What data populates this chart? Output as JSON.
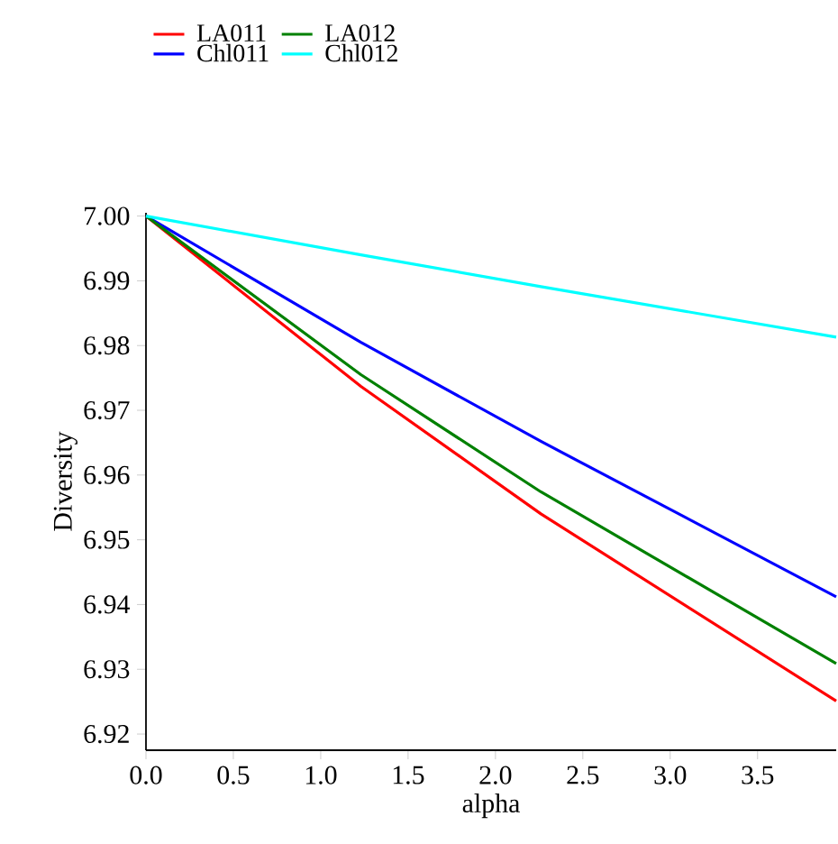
{
  "chart_data": {
    "type": "line",
    "xlabel": "alpha",
    "ylabel": "Diversity",
    "xlim": [
      0,
      3.95
    ],
    "ylim": [
      6.9175,
      7.0005
    ],
    "xticks": [
      {
        "value": 0,
        "label": "0.0"
      },
      0.5,
      {
        "value": 1,
        "label": "1.0"
      },
      1.5,
      {
        "value": 2,
        "label": "2.0"
      },
      2.5,
      {
        "value": 3,
        "label": "3.0"
      },
      3.5
    ],
    "yticks": [
      6.92,
      6.93,
      6.94,
      6.95,
      6.96,
      6.97,
      6.98,
      6.99,
      {
        "value": 7,
        "label": "7.00"
      }
    ],
    "grid": false,
    "legend": "top left",
    "marker": "none",
    "line_style": "solid",
    "x": [
      0,
      1.23,
      2.26,
      3.95
    ],
    "series": [
      {
        "name": "LA011",
        "color": "#ff0000",
        "values": [
          7.0,
          6.9737,
          6.954,
          6.9251
        ]
      },
      {
        "name": "Chl011",
        "color": "#0000ff",
        "values": [
          7.0,
          6.9805,
          6.9652,
          6.9412
        ]
      },
      {
        "name": "LA012",
        "color": "#008000",
        "values": [
          7.0,
          6.9755,
          6.9574,
          6.9309
        ]
      },
      {
        "name": "Chl012",
        "color": "#00ffff",
        "values": [
          7.0,
          6.994,
          6.9891,
          6.9813
        ]
      }
    ]
  }
}
